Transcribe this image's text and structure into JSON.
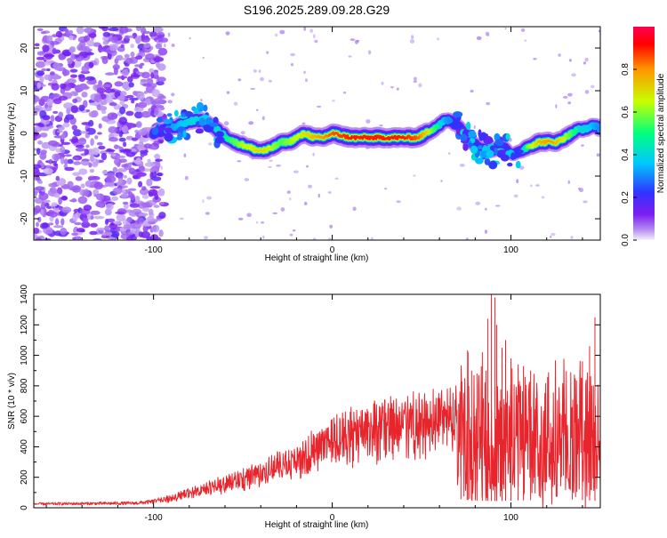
{
  "title": "S196.2025.289.09.28.G29",
  "colors": {
    "snr_line": "#e8242c",
    "ridge_core": "#ff2a2a",
    "noise": "#8a2be2",
    "colorscale": [
      "#f4f0fc",
      "#b48cf0",
      "#7d1ef0",
      "#3232ff",
      "#00c8ff",
      "#00ff7f",
      "#c8ff00",
      "#ff9600",
      "#ff0000",
      "#ff0050"
    ]
  },
  "chart_data": [
    {
      "type": "heatmap",
      "title": "S196.2025.289.09.28.G29",
      "xlabel": "Height of straight line (km)",
      "ylabel": "Frequency (Hz)",
      "xlim": [
        -167,
        150
      ],
      "ylim": [
        -25,
        25
      ],
      "xticks": [
        -100,
        0,
        100
      ],
      "xtick_labels": [
        "-100",
        "0",
        "100"
      ],
      "yticks": [
        -20,
        -10,
        0,
        10,
        20
      ],
      "ytick_labels": [
        "-20",
        "-10",
        "0",
        "10",
        "20"
      ],
      "ridge": {
        "x": [
          -100,
          -92,
          -85,
          -78,
          -72,
          -68,
          -62,
          -55,
          -48,
          -42,
          -37,
          -32,
          -28,
          -24,
          -20,
          -15,
          -10,
          -5,
          0,
          10,
          20,
          30,
          40,
          48,
          52,
          56,
          60,
          63,
          66,
          70,
          74,
          78,
          82,
          86,
          90,
          94,
          98,
          102,
          106,
          110,
          116,
          122,
          126,
          130,
          134,
          138,
          142,
          146,
          150
        ],
        "y": [
          0,
          1,
          2,
          3,
          3,
          2,
          0,
          -2,
          -3,
          -4,
          -4,
          -3,
          -2,
          -2,
          -1,
          0,
          -1,
          -1,
          0,
          -1,
          -1,
          -1,
          -1,
          -1,
          0,
          1,
          2,
          3,
          3,
          2,
          0,
          -2,
          -3,
          -4,
          -4,
          -3,
          -4,
          -5,
          -4,
          -3,
          -2,
          -2,
          -2,
          -1,
          0,
          1,
          1,
          2,
          1
        ],
        "amplitude": [
          0.25,
          0.3,
          0.35,
          0.4,
          0.38,
          0.35,
          0.45,
          0.55,
          0.65,
          0.7,
          0.7,
          0.6,
          0.55,
          0.6,
          0.65,
          0.7,
          0.75,
          0.8,
          0.85,
          0.9,
          0.9,
          0.9,
          0.9,
          0.85,
          0.75,
          0.6,
          0.45,
          0.35,
          0.3,
          0.28,
          0.25,
          0.25,
          0.22,
          0.22,
          0.22,
          0.25,
          0.22,
          0.22,
          0.25,
          0.6,
          0.75,
          0.8,
          0.75,
          0.65,
          0.55,
          0.45,
          0.4,
          0.35,
          0.3
        ]
      },
      "noise_region": {
        "x_from": -167,
        "x_to": -100
      }
    },
    {
      "type": "colorbar",
      "label": "Normalized spectral amplitude",
      "range": [
        0,
        1
      ],
      "ticks": [
        0.0,
        0.2,
        0.4,
        0.6,
        0.8
      ],
      "tick_labels": [
        "0.0",
        "0.2",
        "0.4",
        "0.6",
        "0.8"
      ]
    },
    {
      "type": "line",
      "xlabel": "Height of straight line (km)",
      "ylabel": "SNR (10 * v/v)",
      "xlim": [
        -167,
        150
      ],
      "ylim": [
        0,
        1400
      ],
      "xticks": [
        -100,
        0,
        100
      ],
      "xtick_labels": [
        "-100",
        "0",
        "100"
      ],
      "yticks": [
        0,
        200,
        400,
        600,
        800,
        1000,
        1200,
        1400
      ],
      "ytick_labels": [
        "0",
        "200",
        "400",
        "600",
        "800",
        "1000",
        "1200",
        "1400"
      ],
      "envelope": {
        "x": [
          -167,
          -110,
          -100,
          -90,
          -80,
          -70,
          -60,
          -50,
          -40,
          -30,
          -20,
          -10,
          0,
          10,
          20,
          30,
          40,
          50,
          60,
          68,
          72,
          75,
          80,
          85,
          90,
          95,
          100,
          105,
          110,
          115,
          120,
          130,
          140,
          145,
          150
        ],
        "y": [
          25,
          30,
          40,
          60,
          90,
          120,
          150,
          180,
          210,
          260,
          300,
          360,
          420,
          460,
          490,
          510,
          530,
          540,
          545,
          550,
          560,
          520,
          470,
          460,
          440,
          450,
          470,
          480,
          500,
          510,
          520,
          520,
          510,
          470,
          420
        ]
      },
      "peaks": [
        {
          "x": 72,
          "y": 820
        },
        {
          "x": 76,
          "y": 1020
        },
        {
          "x": 78,
          "y": 900
        },
        {
          "x": 81,
          "y": 880
        },
        {
          "x": 84,
          "y": 1020
        },
        {
          "x": 86,
          "y": 900
        },
        {
          "x": 87,
          "y": 1240
        },
        {
          "x": 89,
          "y": 1400
        },
        {
          "x": 91,
          "y": 1380
        },
        {
          "x": 92,
          "y": 1200
        },
        {
          "x": 95,
          "y": 1050
        },
        {
          "x": 97,
          "y": 1100
        },
        {
          "x": 100,
          "y": 980
        },
        {
          "x": 104,
          "y": 940
        },
        {
          "x": 107,
          "y": 930
        },
        {
          "x": 111,
          "y": 900
        },
        {
          "x": 140,
          "y": 960
        },
        {
          "x": 144,
          "y": 1060
        },
        {
          "x": 147,
          "y": 1250
        }
      ]
    }
  ]
}
